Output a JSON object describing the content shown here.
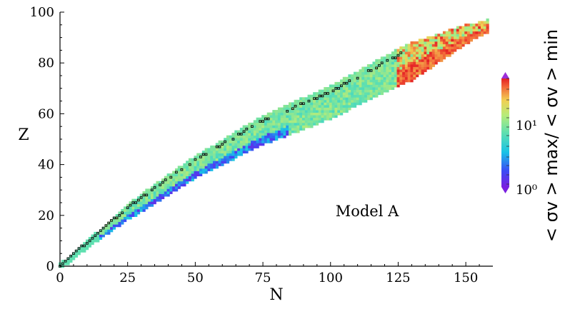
{
  "chart_data": {
    "type": "heatmap",
    "xlabel": "N",
    "ylabel": "Z",
    "xlim": [
      0,
      160
    ],
    "ylim": [
      0,
      100
    ],
    "xticks": [
      0,
      25,
      50,
      75,
      100,
      125,
      150
    ],
    "yticks": [
      0,
      20,
      40,
      60,
      80,
      100
    ],
    "annotation": "Model A",
    "colorbar": {
      "label": "< σv > max/ < σv > min",
      "scale": "log",
      "range": [
        1,
        50
      ],
      "ticks": [
        "10⁰",
        "10¹"
      ],
      "colormap": "rainbow"
    },
    "band": {
      "description": "ratio values along nuclear chart, stable nuclei outlined",
      "centerline": [
        [
          0,
          0
        ],
        [
          25,
          22
        ],
        [
          50,
          40
        ],
        [
          75,
          55
        ],
        [
          100,
          66
        ],
        [
          125,
          80
        ],
        [
          150,
          92
        ],
        [
          158,
          95
        ]
      ],
      "half_width_z": [
        [
          0,
          1
        ],
        [
          15,
          2
        ],
        [
          30,
          4
        ],
        [
          50,
          5
        ],
        [
          80,
          7
        ],
        [
          110,
          8
        ],
        [
          130,
          9
        ],
        [
          155,
          3
        ]
      ],
      "high_region_n": [
        125,
        155
      ],
      "low_region_n": [
        15,
        85
      ]
    }
  }
}
